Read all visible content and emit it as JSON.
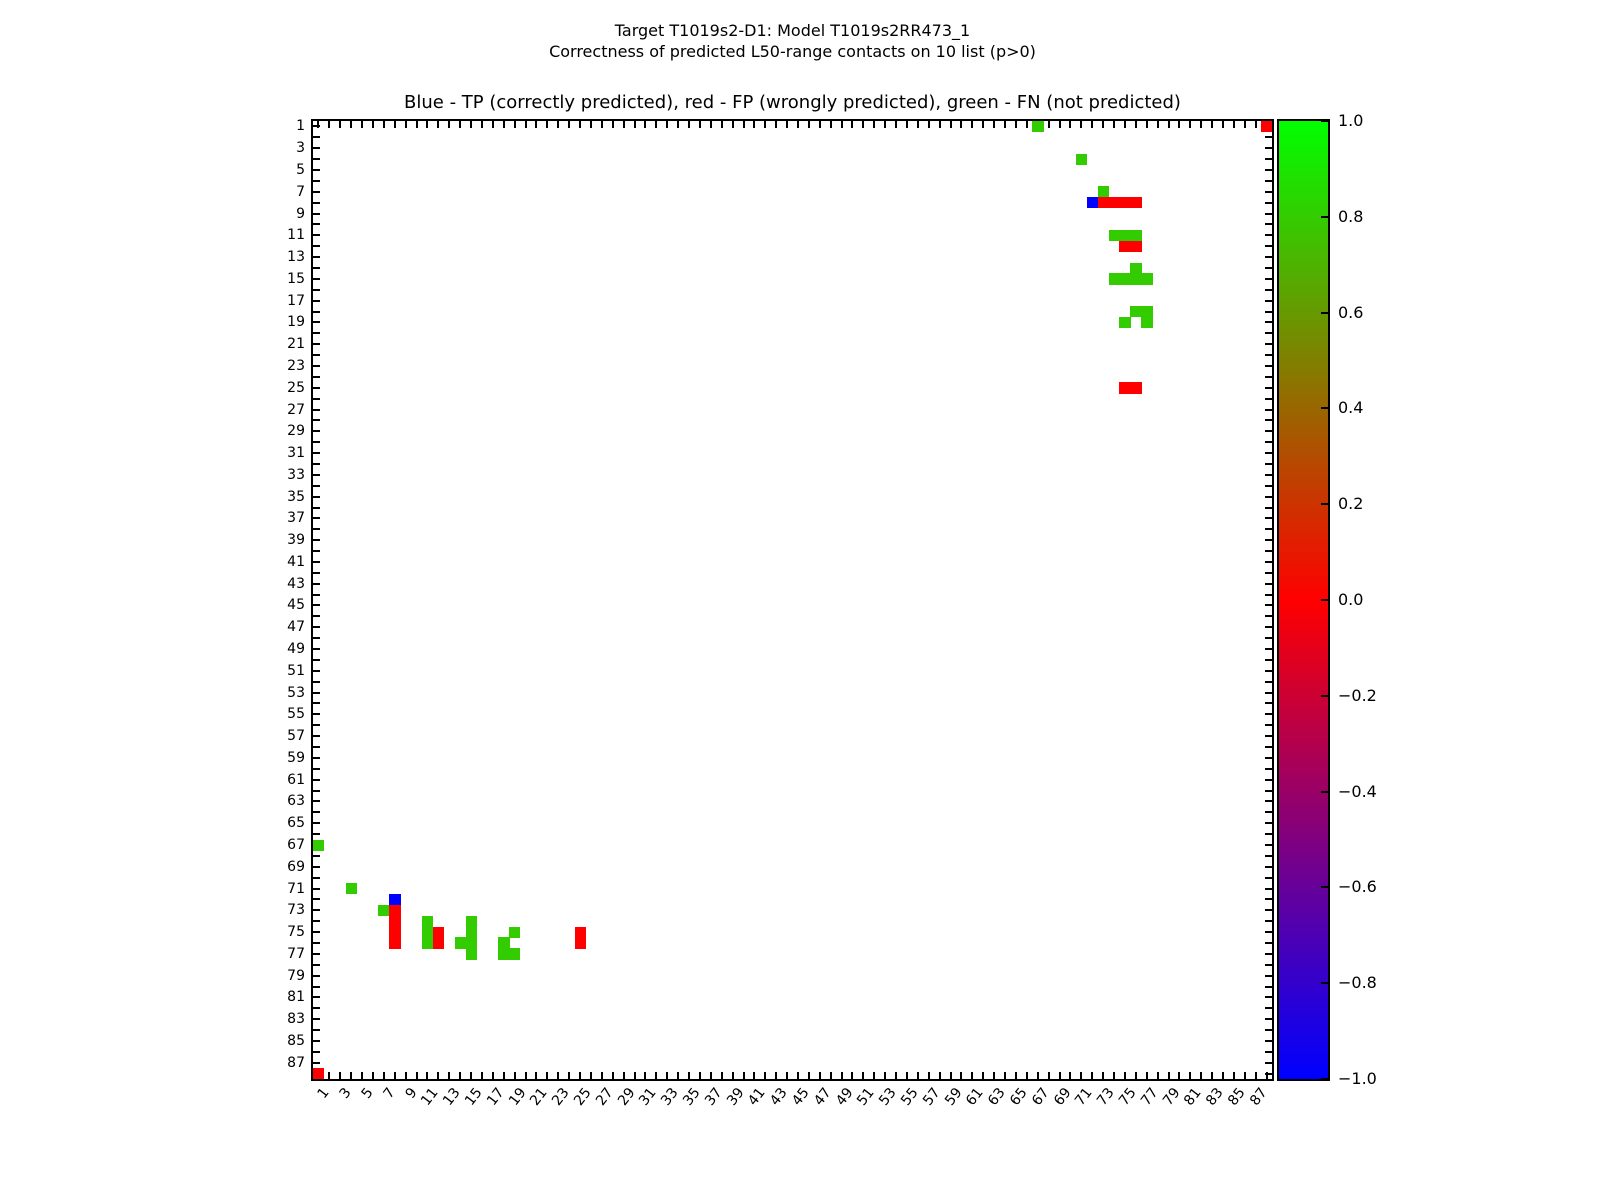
{
  "chart_data": {
    "type": "heatmap",
    "suptitle_line1": "Target T1019s2-D1: Model T1019s2RR473_1",
    "suptitle_line2": "Correctness of predicted L50-range contacts on 10 list (p>0)",
    "axes_title": "Blue - TP (correctly predicted), red - FP (wrongly predicted), green - FN (not predicted)",
    "x_range": [
      1,
      88
    ],
    "y_range": [
      1,
      88
    ],
    "y_axis_direction": "top-to-bottom",
    "grid": false,
    "x_tick_labels": [
      "1",
      "3",
      "5",
      "7",
      "9",
      "11",
      "13",
      "15",
      "17",
      "19",
      "21",
      "23",
      "25",
      "27",
      "29",
      "31",
      "33",
      "35",
      "37",
      "39",
      "41",
      "43",
      "45",
      "47",
      "49",
      "51",
      "53",
      "55",
      "57",
      "59",
      "61",
      "63",
      "65",
      "67",
      "69",
      "71",
      "73",
      "75",
      "77",
      "79",
      "81",
      "83",
      "85",
      "87"
    ],
    "y_tick_labels": [
      "1",
      "3",
      "5",
      "7",
      "9",
      "11",
      "13",
      "15",
      "17",
      "19",
      "21",
      "23",
      "25",
      "27",
      "29",
      "31",
      "33",
      "35",
      "37",
      "39",
      "41",
      "43",
      "45",
      "47",
      "49",
      "51",
      "53",
      "55",
      "57",
      "59",
      "61",
      "63",
      "65",
      "67",
      "69",
      "71",
      "73",
      "75",
      "77",
      "79",
      "81",
      "83",
      "85",
      "87"
    ],
    "colors": {
      "TP": "#0000ff",
      "FP": "#ff0000",
      "FN": "#33cc00"
    },
    "legend": {
      "TP": "correctly predicted (blue)",
      "FP": "wrongly predicted (red)",
      "FN": "not predicted (green)"
    },
    "cells": [
      [
        1,
        67,
        "FN"
      ],
      [
        1,
        88,
        "FP"
      ],
      [
        4,
        71,
        "FN"
      ],
      [
        7,
        73,
        "FN"
      ],
      [
        8,
        72,
        "TP"
      ],
      [
        8,
        73,
        "FP"
      ],
      [
        8,
        74,
        "FP"
      ],
      [
        8,
        75,
        "FP"
      ],
      [
        8,
        76,
        "FP"
      ],
      [
        11,
        74,
        "FN"
      ],
      [
        11,
        75,
        "FN"
      ],
      [
        11,
        76,
        "FN"
      ],
      [
        12,
        75,
        "FP"
      ],
      [
        12,
        76,
        "FP"
      ],
      [
        14,
        76,
        "FN"
      ],
      [
        15,
        74,
        "FN"
      ],
      [
        15,
        75,
        "FN"
      ],
      [
        15,
        76,
        "FN"
      ],
      [
        15,
        77,
        "FN"
      ],
      [
        18,
        76,
        "FN"
      ],
      [
        18,
        77,
        "FN"
      ],
      [
        19,
        75,
        "FN"
      ],
      [
        19,
        77,
        "FN"
      ],
      [
        25,
        75,
        "FP"
      ],
      [
        25,
        76,
        "FP"
      ],
      [
        67,
        1,
        "FN"
      ],
      [
        88,
        1,
        "FP"
      ],
      [
        71,
        4,
        "FN"
      ],
      [
        73,
        7,
        "FN"
      ],
      [
        72,
        8,
        "TP"
      ],
      [
        73,
        8,
        "FP"
      ],
      [
        74,
        8,
        "FP"
      ],
      [
        75,
        8,
        "FP"
      ],
      [
        76,
        8,
        "FP"
      ],
      [
        74,
        11,
        "FN"
      ],
      [
        75,
        11,
        "FN"
      ],
      [
        76,
        11,
        "FN"
      ],
      [
        75,
        12,
        "FP"
      ],
      [
        76,
        12,
        "FP"
      ],
      [
        76,
        14,
        "FN"
      ],
      [
        74,
        15,
        "FN"
      ],
      [
        75,
        15,
        "FN"
      ],
      [
        76,
        15,
        "FN"
      ],
      [
        77,
        15,
        "FN"
      ],
      [
        76,
        18,
        "FN"
      ],
      [
        77,
        18,
        "FN"
      ],
      [
        75,
        19,
        "FN"
      ],
      [
        77,
        19,
        "FN"
      ],
      [
        75,
        25,
        "FP"
      ],
      [
        76,
        25,
        "FP"
      ]
    ],
    "colorbar": {
      "tick_labels": [
        "1.0",
        "0.8",
        "0.6",
        "0.4",
        "0.2",
        "0.0",
        "−0.2",
        "−0.4",
        "−0.6",
        "−0.8",
        "−1.0"
      ],
      "top_value": 1.0,
      "bottom_value": -1.0,
      "top_color": "#00ff00",
      "mid_color": "#ff0000",
      "bottom_color": "#0000ff",
      "position": "right"
    }
  }
}
